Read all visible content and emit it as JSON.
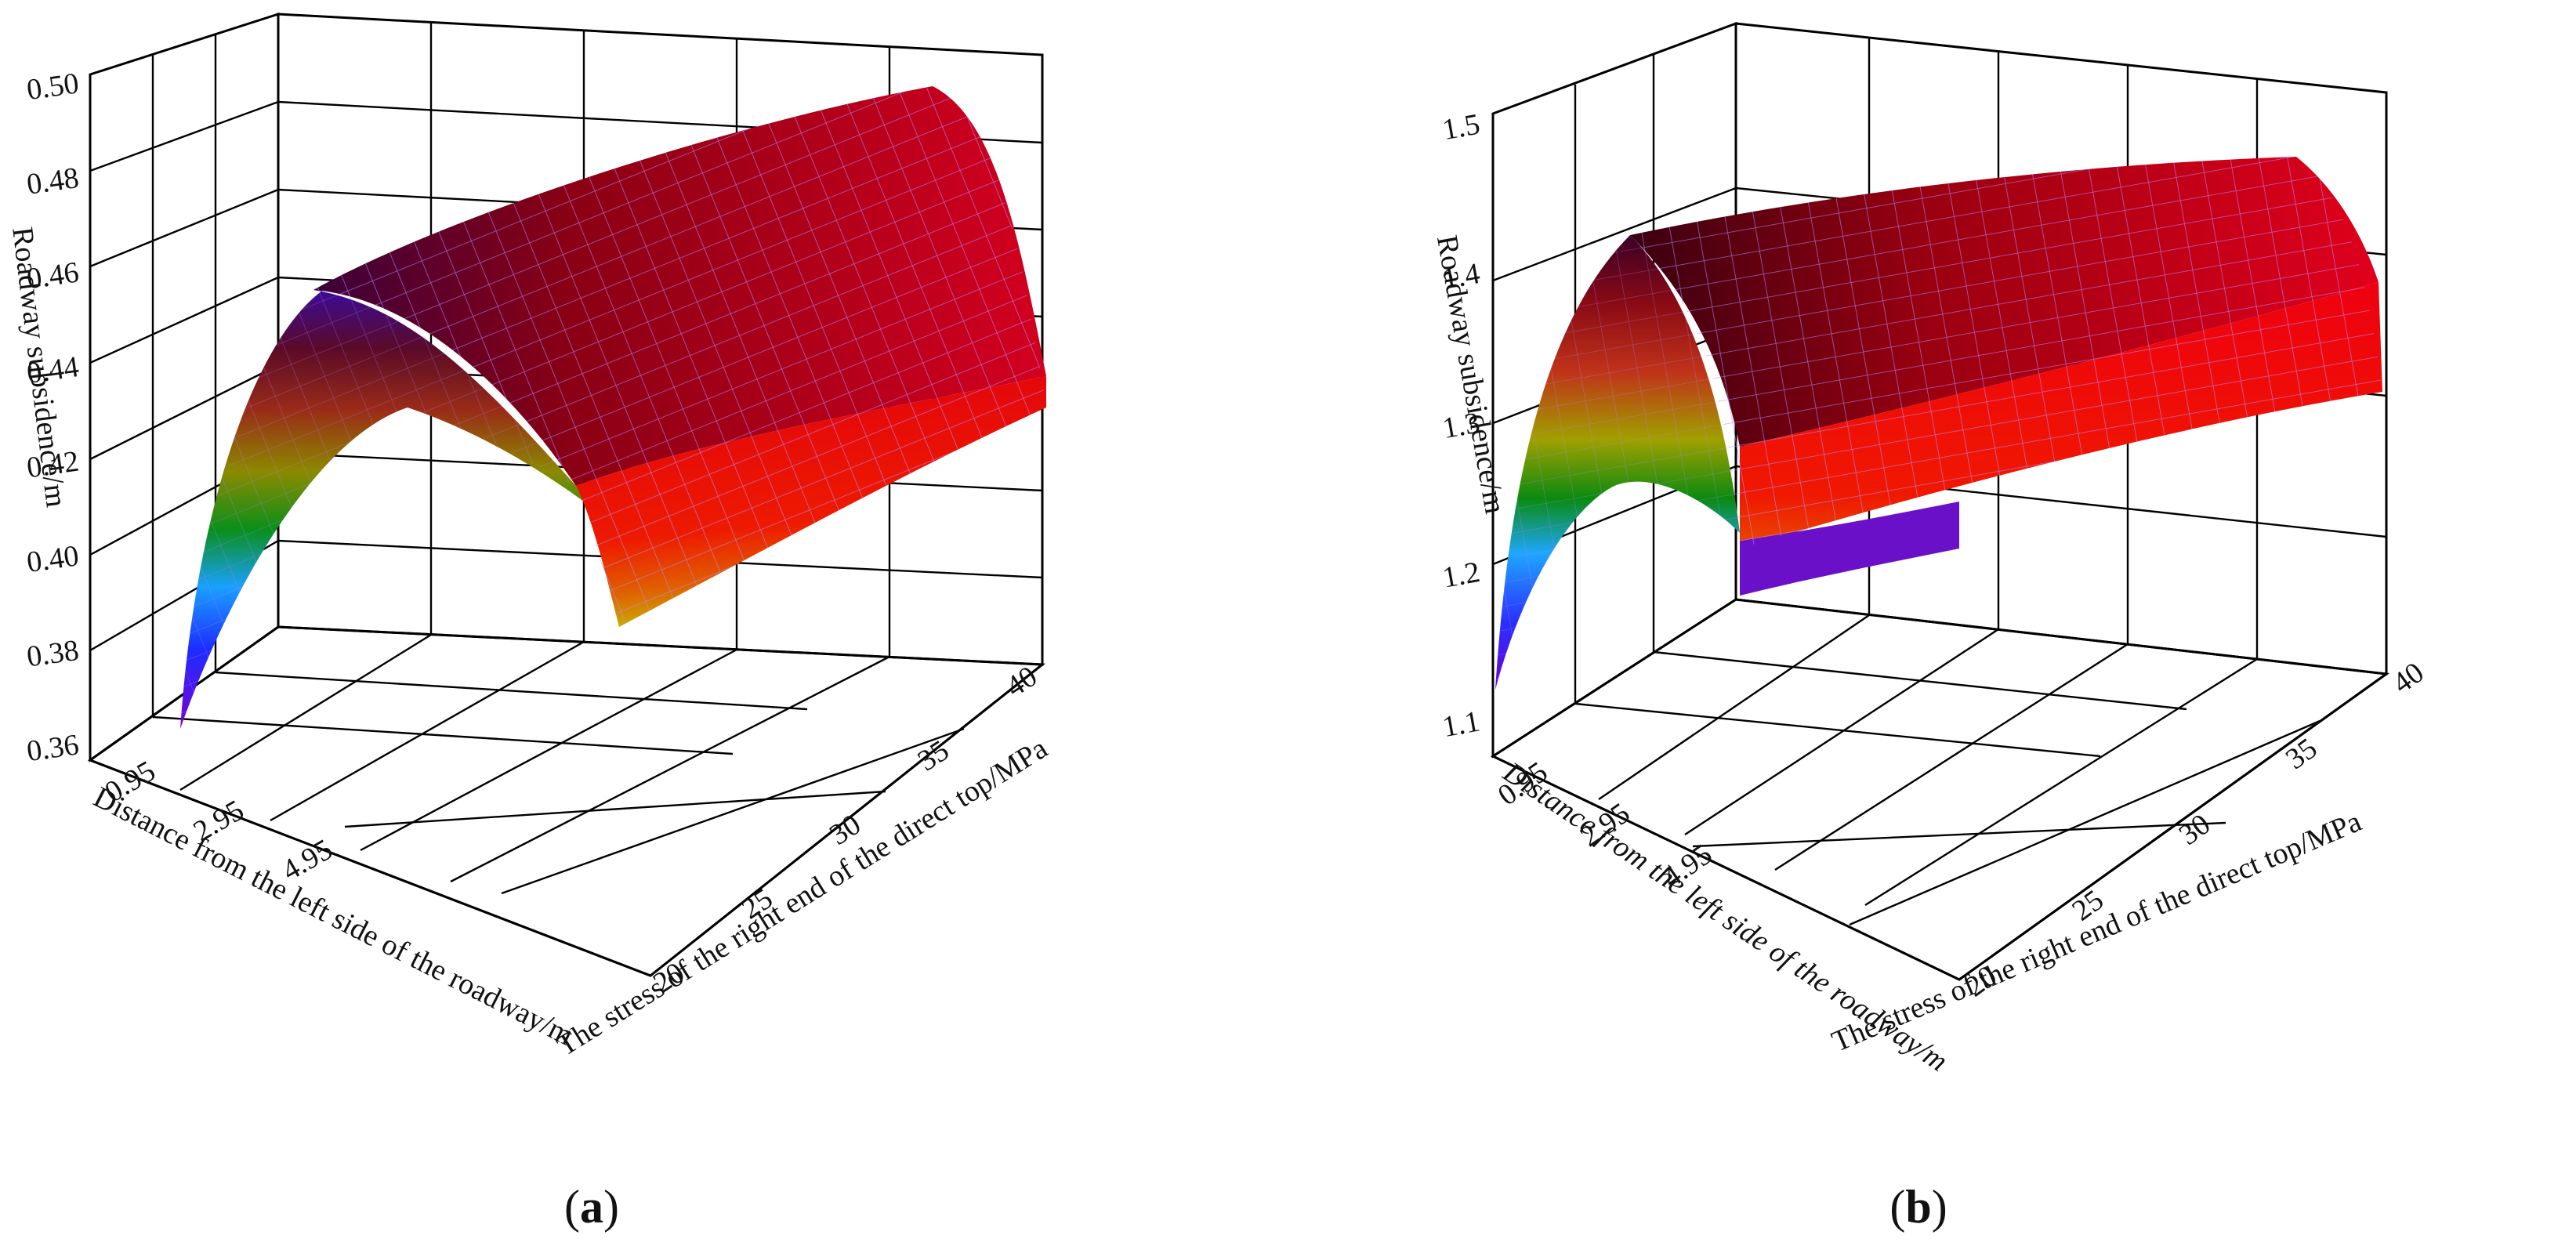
{
  "panels": [
    {
      "id": "a",
      "caption_letter": "a",
      "ylabel_rotated": "Roadway subsidence/m",
      "chart_data": {
        "type": "surface",
        "x": {
          "label": "Distance from the left side of the roadway/m",
          "ticks": [
            "0.95",
            "2.95",
            "4.95"
          ],
          "range": [
            0.95,
            4.95
          ]
        },
        "y": {
          "label": "The stress of the right end of the direct top/MPa",
          "ticks": [
            "20",
            "25",
            "30",
            "35",
            "40"
          ],
          "range": [
            20,
            40
          ]
        },
        "z": {
          "label": "Roadway subsidence/m",
          "ticks": [
            "0.36",
            "0.38",
            "0.40",
            "0.42",
            "0.44",
            "0.46",
            "0.48",
            "0.50"
          ],
          "range": [
            0.36,
            0.5
          ]
        },
        "surface": {
          "shape": "parabolic ridge across distance",
          "z_at_stress_20": {
            "distance": [
              0.95,
              1.95,
              2.95,
              3.95,
              4.95
            ],
            "subsidence": [
              0.378,
              0.456,
              0.478,
              0.454,
              0.395
            ]
          },
          "z_at_stress_40": {
            "distance": [
              0.95,
              1.95,
              2.95,
              3.95,
              4.95
            ],
            "subsidence": [
              0.395,
              0.473,
              0.495,
              0.471,
              0.412
            ]
          }
        }
      }
    },
    {
      "id": "b",
      "caption_letter": "b",
      "ylabel_rotated": "Roadway subsidence/m",
      "chart_data": {
        "type": "surface",
        "x": {
          "label": "Distance from the left side of the roadway/m",
          "ticks": [
            "0.95",
            "2.95",
            "4.95"
          ],
          "range": [
            0.95,
            4.95
          ]
        },
        "y": {
          "label": "The stress of the right end of the direct top/MPa",
          "ticks": [
            "20",
            "25",
            "30",
            "35",
            "40"
          ],
          "range": [
            20,
            40
          ]
        },
        "z": {
          "label": "Roadway subsidence/m",
          "ticks": [
            "1.1",
            "1.2",
            "1.3",
            "1.4",
            "1.5"
          ],
          "range": [
            1.1,
            1.5
          ]
        },
        "surface": {
          "shape": "parabolic ridge across distance",
          "z_at_stress_20": {
            "distance": [
              0.95,
              1.95,
              2.95,
              3.95,
              4.95
            ],
            "subsidence": [
              1.1,
              1.37,
              1.43,
              1.38,
              1.23
            ]
          },
          "z_at_stress_40": {
            "distance": [
              0.95,
              1.95,
              2.95,
              3.95,
              4.95
            ],
            "subsidence": [
              1.13,
              1.4,
              1.47,
              1.41,
              1.26
            ]
          }
        }
      }
    }
  ]
}
